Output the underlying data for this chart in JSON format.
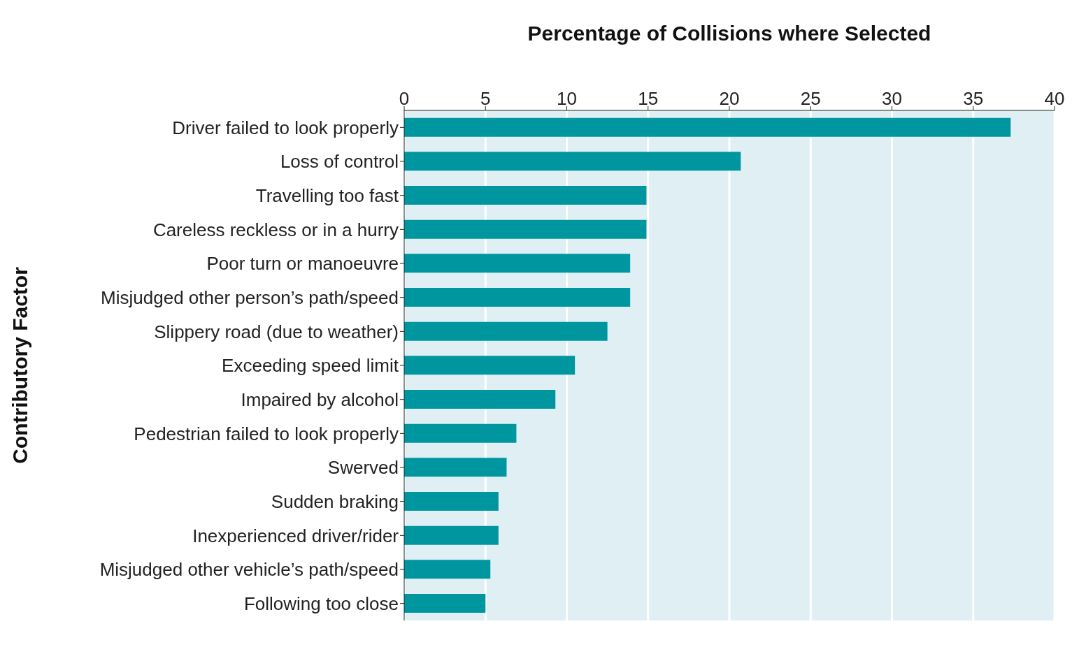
{
  "chart_data": {
    "type": "bar",
    "orientation": "horizontal",
    "xlabel": "Percentage of Collisions where Selected",
    "ylabel": "Contributory Factor",
    "categories": [
      "Driver failed to look properly",
      "Loss of control",
      "Travelling too fast",
      "Careless reckless or in a hurry",
      "Poor turn or manoeuvre",
      "Misjudged other person’s path/speed",
      "Slippery road (due to weather)",
      "Exceeding speed limit",
      "Impaired by alcohol",
      "Pedestrian failed to look properly",
      "Swerved",
      "Sudden braking",
      "Inexperienced driver/rider",
      "Misjudged other vehicle’s path/speed",
      "Following too close"
    ],
    "values": [
      37.3,
      20.7,
      14.9,
      14.9,
      13.9,
      13.9,
      12.5,
      10.5,
      9.3,
      6.9,
      6.3,
      5.8,
      5.8,
      5.3,
      5.0
    ],
    "color": "#0096a0",
    "xlim": [
      0,
      40
    ],
    "xticks": [
      0,
      5,
      10,
      15,
      20,
      25,
      30,
      35,
      40
    ],
    "grid": "x"
  }
}
